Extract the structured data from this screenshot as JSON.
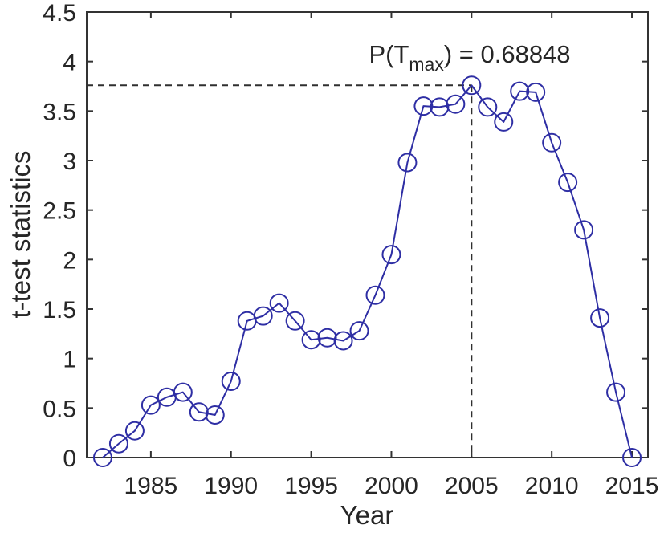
{
  "figure": {
    "background": "#ffffff"
  },
  "chart_data": {
    "type": "line",
    "title": "",
    "xlabel": "Year",
    "ylabel": "t-test statistics",
    "xlim": [
      1981,
      2016
    ],
    "ylim": [
      0,
      4.5
    ],
    "xticks": [
      1985,
      1990,
      1995,
      2000,
      2005,
      2010,
      2015
    ],
    "yticks": [
      0,
      0.5,
      1,
      1.5,
      2,
      2.5,
      3,
      3.5,
      4,
      4.5
    ],
    "grid": false,
    "legend_position": "none",
    "axis_color": "#333333",
    "text_color": "#262626",
    "series": [
      {
        "name": "t-test statistics",
        "marker": "circle",
        "marker_filled": false,
        "color": "#2e2ea4",
        "x": [
          1982,
          1983,
          1984,
          1985,
          1986,
          1987,
          1988,
          1989,
          1990,
          1991,
          1992,
          1993,
          1994,
          1995,
          1996,
          1997,
          1998,
          1999,
          2000,
          2001,
          2002,
          2003,
          2004,
          2005,
          2006,
          2007,
          2008,
          2009,
          2010,
          2011,
          2012,
          2013,
          2014,
          2015
        ],
        "y": [
          0.0,
          0.14,
          0.27,
          0.53,
          0.61,
          0.66,
          0.46,
          0.43,
          0.77,
          1.38,
          1.43,
          1.56,
          1.38,
          1.19,
          1.21,
          1.18,
          1.28,
          1.64,
          2.05,
          2.98,
          3.55,
          3.54,
          3.57,
          3.76,
          3.54,
          3.39,
          3.7,
          3.69,
          3.18,
          2.78,
          2.3,
          1.41,
          0.66,
          0.0
        ]
      }
    ],
    "max_point": {
      "x": 2005,
      "y": 3.76,
      "dashed_color": "#2f2f2f"
    },
    "annotation": {
      "text": "P(T_max) = 0.68848",
      "prefix": "P(T",
      "subscript": "max",
      "suffix": ") = 0.68848"
    }
  }
}
